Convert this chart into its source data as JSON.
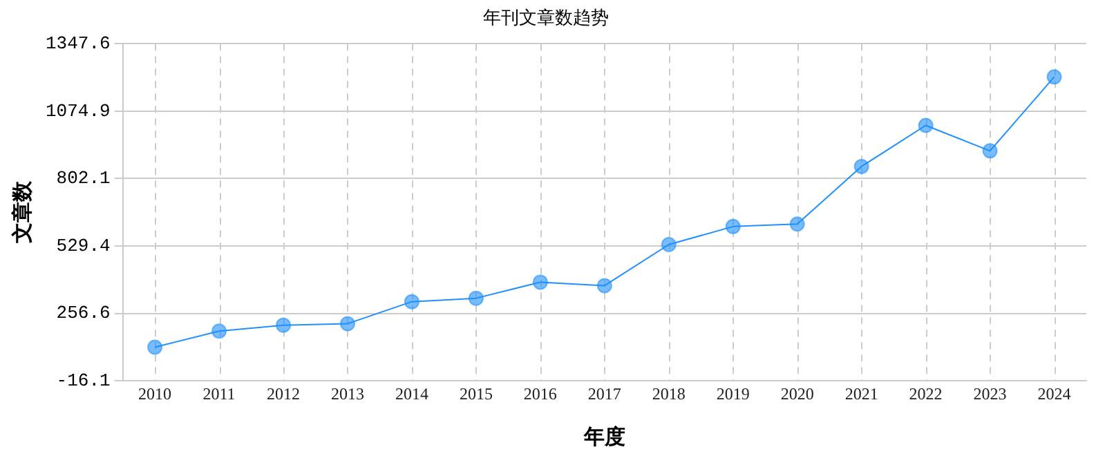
{
  "chart_data": {
    "type": "line",
    "title": "年刊文章数趋势",
    "xlabel": "年度",
    "ylabel": "文章数",
    "categories": [
      "2010",
      "2011",
      "2012",
      "2013",
      "2014",
      "2015",
      "2016",
      "2017",
      "2018",
      "2019",
      "2020",
      "2021",
      "2022",
      "2023",
      "2024"
    ],
    "series": [
      {
        "color": "#1e90ff",
        "values": [
          120,
          185,
          209,
          215,
          304,
          318,
          383,
          369,
          535,
          608,
          618,
          851,
          1017,
          914,
          1213
        ]
      }
    ],
    "ylim": [
      -16.1,
      1347.6
    ],
    "yticks": [
      -16.1,
      256.6,
      529.4,
      802.1,
      1074.9,
      1347.6
    ],
    "grid": true,
    "legend": false,
    "marker": "circle",
    "line_style": "solid"
  }
}
